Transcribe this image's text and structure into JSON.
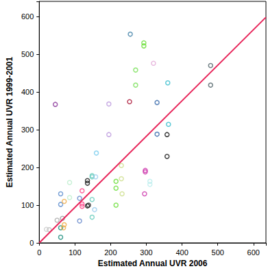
{
  "chart_data": {
    "type": "scatter",
    "x_label": "Estimated Annual UVR 2006",
    "y_label": "Estimated Annual UVR 1999-2001",
    "xlim": [
      0,
      635
    ],
    "ylim": [
      0,
      640
    ],
    "xticks": [
      0,
      100,
      200,
      300,
      400,
      500,
      600
    ],
    "yticks": [
      0,
      100,
      200,
      300,
      400,
      500,
      600
    ],
    "grid": false,
    "series": [
      {
        "type": "scatter",
        "marker": "hollow_circle",
        "x": [
          255,
          293,
          293,
          270,
          270,
          320,
          480,
          480,
          360,
          362,
          45,
          195,
          195,
          253,
          330,
          330,
          358,
          358,
          297,
          297,
          295,
          310,
          310,
          160,
          230,
          230,
          232,
          215,
          215,
          215,
          135,
          135,
          135,
          148,
          148,
          148,
          148,
          158,
          155,
          120,
          120,
          120,
          113,
          113,
          85,
          85,
          60,
          60,
          60,
          60,
          70,
          70,
          68,
          65,
          50,
          28,
          20,
          138
        ],
        "values": [
          553,
          530,
          522,
          458,
          418,
          476,
          470,
          418,
          424,
          314,
          367,
          368,
          287,
          374,
          372,
          288,
          287,
          229,
          192,
          188,
          130,
          163,
          155,
          238,
          205,
          170,
          130,
          163,
          145,
          100,
          165,
          158,
          98,
          178,
          175,
          115,
          68,
          175,
          88,
          138,
          103,
          97,
          118,
          58,
          160,
          120,
          130,
          102,
          40,
          15,
          110,
          48,
          40,
          65,
          60,
          35,
          36,
          100
        ],
        "colors": [
          "#3f7fa6",
          "#66dd33",
          "#66dd33",
          "#77e055",
          "#77e055",
          "#e4aad8",
          "#4f6266",
          "#4f6266",
          "#33bbcc",
          "#33bbcc",
          "#883399",
          "#bb99dd",
          "#bb99dd",
          "#aa1133",
          "#3366aa",
          "#3366aa",
          "#111111",
          "#111111",
          "#cc33aa",
          "#cc33aa",
          "#cc33aa",
          "#bbeeee",
          "#bbeeee",
          "#77ccee",
          "#ccdd88",
          "#ccdd88",
          "#ccdd88",
          "#66dd33",
          "#66dd33",
          "#66dd33",
          "#111111",
          "#111111",
          "#111111",
          "#66ccbb",
          "#66ccbb",
          "#66ccbb",
          "#66ccbb",
          "#99ccee",
          "#99ccee",
          "#ff4488",
          "#ff4488",
          "#ff4488",
          "#6688cc",
          "#6688cc",
          "#bbeecc",
          "#bbeecc",
          "#5588cc",
          "#5588cc",
          "#118877",
          "#118877",
          "#eeaa44",
          "#eeaa44",
          "#eeaa44",
          "#999999",
          "#aaaaaa",
          "#bbbbbb",
          "#cccccc",
          "#222222"
        ]
      },
      {
        "type": "line",
        "x": [
          0,
          635
        ],
        "values": [
          0,
          598
        ],
        "color": "#e8255a"
      }
    ]
  }
}
